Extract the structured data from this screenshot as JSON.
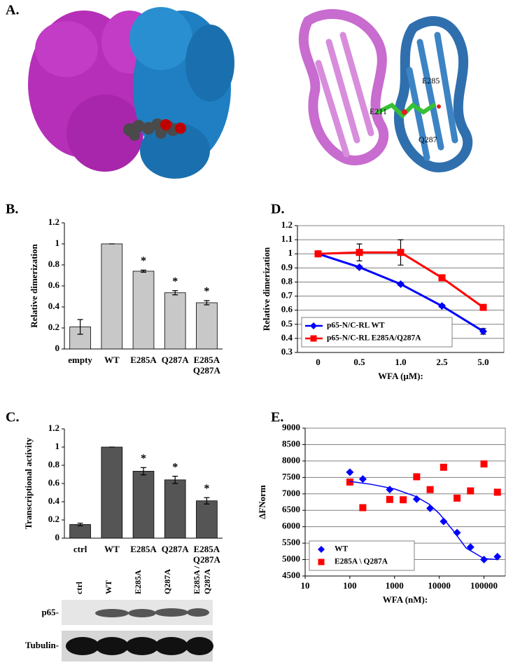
{
  "panel_labels": [
    "A.",
    "B.",
    "C.",
    "D.",
    "E."
  ],
  "structure_labels": [
    "E211",
    "E285",
    "Q287"
  ],
  "blot": {
    "lanes": [
      "ctrl",
      "WT",
      "E285A",
      "Q287A",
      "E285A /\nQ287A"
    ],
    "rows": [
      "p65-",
      "Tubulin-"
    ]
  },
  "chart_data": [
    {
      "type": "bar",
      "ylabel": "Relative dimerization",
      "categories": [
        "empty",
        "WT",
        "E285A",
        "Q287A",
        "E285A\nQ287A"
      ],
      "values": [
        0.21,
        1,
        0.74,
        0.535,
        0.44
      ],
      "errors": [
        0.07,
        0,
        0.01,
        0.02,
        0.02
      ],
      "significance": [
        null,
        null,
        "*",
        "*",
        "*"
      ],
      "color": "#c8c8c8",
      "ylim": [
        0,
        1.2
      ],
      "yticks": [
        0,
        0.2,
        0.4,
        0.6,
        0.8,
        1,
        1.2
      ]
    },
    {
      "type": "bar",
      "ylabel": "Transcriptional activity",
      "categories": [
        "ctrl",
        "WT",
        "E285A",
        "Q287A",
        "E285A\nQ287A"
      ],
      "values": [
        0.15,
        1,
        0.735,
        0.64,
        0.41
      ],
      "errors": [
        0.015,
        0,
        0.04,
        0.04,
        0.035
      ],
      "significance": [
        null,
        null,
        "*",
        "*",
        "*"
      ],
      "color": "#555555",
      "ylim": [
        0,
        1.2
      ],
      "yticks": [
        0,
        0.2,
        0.4,
        0.6,
        0.8,
        1,
        1.2
      ]
    },
    {
      "type": "line",
      "ylabel": "Relative dimerization",
      "xlabel": "WFA (µM):",
      "categories": [
        "0",
        "0.5",
        "1.0",
        "2.5",
        "5.0"
      ],
      "series": [
        {
          "name": "p65-N/C-RL WT",
          "color": "#0000ff",
          "marker": "diamond",
          "values": [
            1,
            0.905,
            0.785,
            0.63,
            0.45
          ],
          "errors": [
            0,
            0.01,
            0.01,
            0.01,
            0.02
          ]
        },
        {
          "name": "p65-N/C-RL E285A/Q287A",
          "color": "#ff0000",
          "marker": "square",
          "values": [
            1,
            1.01,
            1.01,
            0.83,
            0.62
          ],
          "errors": [
            0.01,
            0.06,
            0.09,
            0.02,
            0.02
          ]
        }
      ],
      "ylim": [
        0.3,
        1.2
      ],
      "yticks": [
        0.3,
        0.4,
        0.5,
        0.6,
        0.7,
        0.8,
        0.9,
        1,
        1.1,
        1.2
      ],
      "grid": true,
      "legend": "lower-left"
    },
    {
      "type": "scatter",
      "ylabel": "ΔFNorm",
      "xlabel": "WFA (nM):",
      "xscale": "log",
      "xlim": [
        10,
        300000
      ],
      "xticks": [
        10,
        100,
        1000,
        10000,
        100000
      ],
      "ylim": [
        4500,
        9000
      ],
      "yticks": [
        4500,
        5000,
        5500,
        6000,
        6500,
        7000,
        7500,
        8000,
        8500,
        9000
      ],
      "grid": true,
      "legend": "lower-left",
      "series": [
        {
          "name": "WT",
          "color": "#0000ff",
          "marker": "diamond",
          "x": [
            100,
            195,
            780,
            3125,
            6250,
            12500,
            25000,
            50000,
            100000,
            200000
          ],
          "values": [
            7660,
            7450,
            7130,
            6840,
            6560,
            6160,
            5820,
            5380,
            5000,
            5090
          ]
        },
        {
          "name": "E285A \\ Q287A",
          "color": "#ff0000",
          "marker": "square",
          "x": [
            100,
            195,
            780,
            1560,
            3125,
            6250,
            12500,
            25000,
            50000,
            100000,
            200000
          ],
          "values": [
            7360,
            6580,
            6830,
            6820,
            7520,
            7130,
            7810,
            6870,
            7090,
            7910,
            7050
          ]
        },
        {
          "color": "#0000ff",
          "marker": "none",
          "x": [
            100,
            300,
            1000,
            3000,
            6000,
            10000,
            20000,
            40000,
            100000,
            200000
          ],
          "values": [
            7380,
            7290,
            7150,
            6920,
            6680,
            6400,
            5900,
            5350,
            5030,
            5000
          ]
        }
      ]
    }
  ]
}
